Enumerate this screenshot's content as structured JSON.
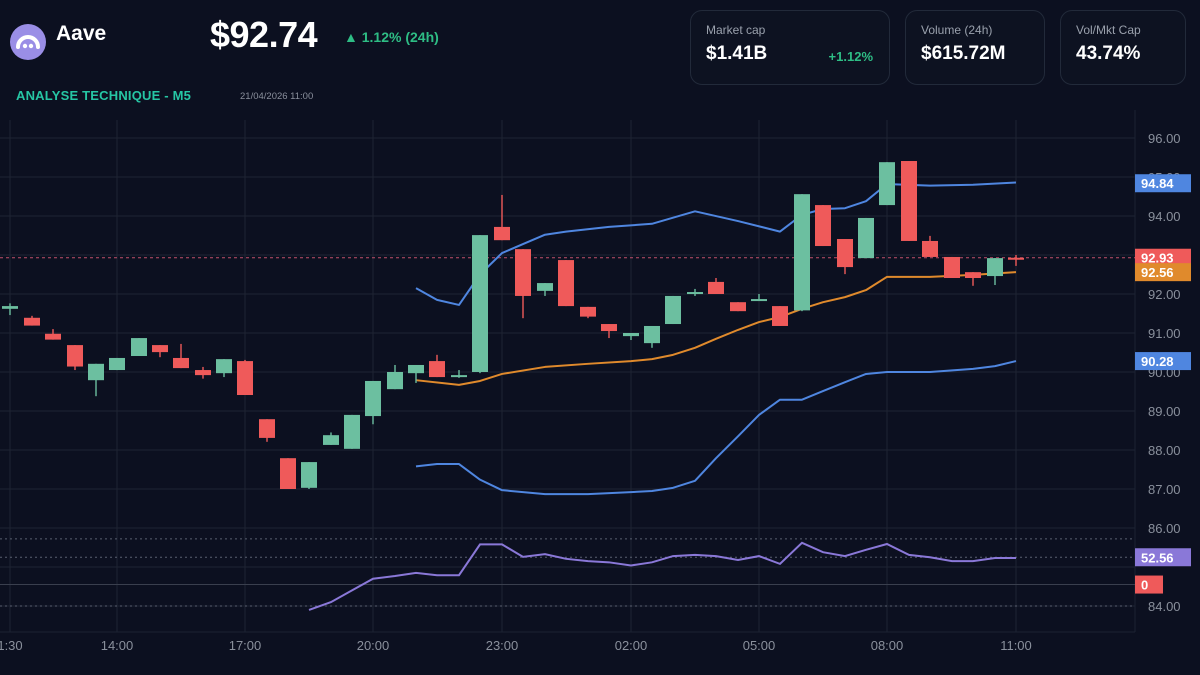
{
  "header": {
    "asset_name": "Aave",
    "price": "$92.74",
    "change": "▲ 1.12% (24h)",
    "section_title": "ANALYSE TECHNIQUE - M5",
    "timestamp": "21/04/2026 11:00"
  },
  "stats": [
    {
      "label": "Market cap",
      "value": "$1.41B",
      "sub": "+1.12%"
    },
    {
      "label": "Volume (24h)",
      "value": "$615.72M",
      "sub": ""
    },
    {
      "label": "Vol/Mkt Cap",
      "value": "43.74%",
      "sub": ""
    }
  ],
  "colors": {
    "up": "#6cbfa0",
    "down": "#ef5a5a",
    "bollinger": "#4f86e0",
    "sma": "#e08a2c",
    "rsi": "#8a78d8",
    "grid": "#1e2433",
    "background": "#0c1020"
  },
  "chart_data": {
    "type": "candlestick",
    "title": "ANALYSE TECHNIQUE - M5",
    "x_tick_labels": [
      "1:30",
      "14:00",
      "17:00",
      "20:00",
      "23:00",
      "02:00",
      "05:00",
      "08:00",
      "11:00"
    ],
    "y_tick_labels": [
      "96.00",
      "95.00",
      "94.00",
      "92.00",
      "91.00",
      "90.00",
      "89.00",
      "88.00",
      "87.00",
      "86.00",
      "84.00"
    ],
    "ylim": [
      83.7,
      96.4
    ],
    "grid": true,
    "price_tags": [
      {
        "label": "94.84",
        "value": 94.84,
        "color": "#4f86e0"
      },
      {
        "label": "92.93",
        "value": 92.93,
        "color": "#ef5a5a"
      },
      {
        "label": "92.56",
        "value": 92.56,
        "color": "#e08a2c"
      },
      {
        "label": "90.28",
        "value": 90.28,
        "color": "#4f86e0"
      },
      {
        "label": "52.56",
        "value": 85.25,
        "color": "#8a78d8"
      },
      {
        "label": "0",
        "value": 84.55,
        "color": "#ef5a5a"
      }
    ],
    "current_price_line": 92.93,
    "candles": [
      {
        "x": 10,
        "o": 91.62,
        "c": 91.69,
        "h": 91.76,
        "l": 91.46
      },
      {
        "x": 32,
        "o": 91.39,
        "c": 91.19,
        "h": 91.44,
        "l": 91.19
      },
      {
        "x": 53,
        "o": 90.98,
        "c": 90.83,
        "h": 91.1,
        "l": 90.83
      },
      {
        "x": 75,
        "o": 90.69,
        "c": 90.14,
        "h": 90.69,
        "l": 90.05
      },
      {
        "x": 96,
        "o": 89.79,
        "c": 90.21,
        "h": 90.21,
        "l": 89.38
      },
      {
        "x": 117,
        "o": 90.05,
        "c": 90.36,
        "h": 90.36,
        "l": 90.05
      },
      {
        "x": 139,
        "o": 90.41,
        "c": 90.87,
        "h": 90.87,
        "l": 90.41
      },
      {
        "x": 160,
        "o": 90.69,
        "c": 90.51,
        "h": 90.69,
        "l": 90.38
      },
      {
        "x": 181,
        "o": 90.36,
        "c": 90.1,
        "h": 90.72,
        "l": 90.1
      },
      {
        "x": 203,
        "o": 90.05,
        "c": 89.92,
        "h": 90.13,
        "l": 89.83
      },
      {
        "x": 224,
        "o": 89.97,
        "c": 90.33,
        "h": 90.33,
        "l": 89.87
      },
      {
        "x": 245,
        "o": 90.28,
        "c": 89.41,
        "h": 90.31,
        "l": 89.41
      },
      {
        "x": 267,
        "o": 88.79,
        "c": 88.31,
        "h": 88.79,
        "l": 88.21
      },
      {
        "x": 288,
        "o": 87.79,
        "c": 87.0,
        "h": 87.79,
        "l": 87.0
      },
      {
        "x": 309,
        "o": 87.03,
        "c": 87.69,
        "h": 87.69,
        "l": 87.0
      },
      {
        "x": 331,
        "o": 88.13,
        "c": 88.38,
        "h": 88.45,
        "l": 88.13
      },
      {
        "x": 352,
        "o": 88.03,
        "c": 88.9,
        "h": 88.9,
        "l": 88.03
      },
      {
        "x": 373,
        "o": 88.87,
        "c": 89.77,
        "h": 89.77,
        "l": 88.66
      },
      {
        "x": 395,
        "o": 89.56,
        "c": 90.0,
        "h": 90.18,
        "l": 89.56
      },
      {
        "x": 416,
        "o": 89.97,
        "c": 90.18,
        "h": 90.18,
        "l": 89.72
      },
      {
        "x": 437,
        "o": 90.28,
        "c": 89.87,
        "h": 90.44,
        "l": 89.87
      },
      {
        "x": 459,
        "o": 89.87,
        "c": 89.92,
        "h": 90.05,
        "l": 89.85
      },
      {
        "x": 480,
        "o": 90.0,
        "c": 93.51,
        "h": 93.51,
        "l": 89.97
      },
      {
        "x": 502,
        "o": 93.72,
        "c": 93.38,
        "h": 94.54,
        "l": 93.38
      },
      {
        "x": 523,
        "o": 93.15,
        "c": 91.95,
        "h": 93.15,
        "l": 91.38
      },
      {
        "x": 545,
        "o": 92.08,
        "c": 92.28,
        "h": 92.28,
        "l": 91.95
      },
      {
        "x": 566,
        "o": 92.87,
        "c": 91.69,
        "h": 92.87,
        "l": 91.69
      },
      {
        "x": 588,
        "o": 91.67,
        "c": 91.42,
        "h": 91.67,
        "l": 91.38
      },
      {
        "x": 609,
        "o": 91.23,
        "c": 91.05,
        "h": 91.23,
        "l": 90.87
      },
      {
        "x": 631,
        "o": 90.92,
        "c": 91.0,
        "h": 91.0,
        "l": 90.82
      },
      {
        "x": 652,
        "o": 90.74,
        "c": 91.18,
        "h": 91.18,
        "l": 90.62
      },
      {
        "x": 673,
        "o": 91.23,
        "c": 91.95,
        "h": 91.95,
        "l": 91.23
      },
      {
        "x": 695,
        "o": 92.0,
        "c": 92.05,
        "h": 92.13,
        "l": 91.95
      },
      {
        "x": 716,
        "o": 92.31,
        "c": 92.0,
        "h": 92.41,
        "l": 92.0
      },
      {
        "x": 738,
        "o": 91.79,
        "c": 91.56,
        "h": 91.79,
        "l": 91.56
      },
      {
        "x": 759,
        "o": 91.85,
        "c": 91.87,
        "h": 92.0,
        "l": 91.82
      },
      {
        "x": 780,
        "o": 91.69,
        "c": 91.18,
        "h": 91.69,
        "l": 91.18
      },
      {
        "x": 802,
        "o": 91.58,
        "c": 94.56,
        "h": 94.56,
        "l": 91.56
      },
      {
        "x": 823,
        "o": 94.28,
        "c": 93.23,
        "h": 94.28,
        "l": 93.23
      },
      {
        "x": 845,
        "o": 93.41,
        "c": 92.69,
        "h": 93.41,
        "l": 92.51
      },
      {
        "x": 866,
        "o": 92.92,
        "c": 93.95,
        "h": 93.95,
        "l": 92.92
      },
      {
        "x": 887,
        "o": 94.28,
        "c": 95.38,
        "h": 95.38,
        "l": 94.28
      },
      {
        "x": 909,
        "o": 95.41,
        "c": 93.36,
        "h": 95.41,
        "l": 93.36
      },
      {
        "x": 930,
        "o": 93.36,
        "c": 92.95,
        "h": 93.49,
        "l": 92.95
      },
      {
        "x": 952,
        "o": 92.95,
        "c": 92.41,
        "h": 92.95,
        "l": 92.41
      },
      {
        "x": 973,
        "o": 92.56,
        "c": 92.41,
        "h": 92.56,
        "l": 92.21
      },
      {
        "x": 995,
        "o": 92.46,
        "c": 92.92,
        "h": 92.92,
        "l": 92.23
      },
      {
        "x": 1016,
        "o": 92.93,
        "c": 92.9,
        "h": 93.0,
        "l": 92.72
      }
    ],
    "bollinger_upper": [
      [
        416,
        92.15
      ],
      [
        437,
        91.85
      ],
      [
        459,
        91.72
      ],
      [
        480,
        92.5
      ],
      [
        502,
        93.05
      ],
      [
        523,
        93.28
      ],
      [
        545,
        93.52
      ],
      [
        566,
        93.6
      ],
      [
        609,
        93.72
      ],
      [
        652,
        93.8
      ],
      [
        695,
        94.12
      ],
      [
        738,
        93.87
      ],
      [
        780,
        93.6
      ],
      [
        802,
        94.03
      ],
      [
        823,
        94.18
      ],
      [
        845,
        94.2
      ],
      [
        866,
        94.38
      ],
      [
        887,
        94.82
      ],
      [
        930,
        94.78
      ],
      [
        973,
        94.8
      ],
      [
        1016,
        94.86
      ]
    ],
    "bollinger_lower": [
      [
        416,
        87.58
      ],
      [
        437,
        87.64
      ],
      [
        459,
        87.64
      ],
      [
        480,
        87.24
      ],
      [
        502,
        86.97
      ],
      [
        545,
        86.87
      ],
      [
        588,
        86.87
      ],
      [
        631,
        86.92
      ],
      [
        652,
        86.95
      ],
      [
        673,
        87.03
      ],
      [
        695,
        87.21
      ],
      [
        716,
        87.79
      ],
      [
        738,
        88.35
      ],
      [
        759,
        88.9
      ],
      [
        780,
        89.29
      ],
      [
        802,
        89.29
      ],
      [
        823,
        89.51
      ],
      [
        845,
        89.74
      ],
      [
        866,
        89.95
      ],
      [
        887,
        90.0
      ],
      [
        930,
        90.0
      ],
      [
        973,
        90.08
      ],
      [
        995,
        90.15
      ],
      [
        1016,
        90.28
      ]
    ],
    "sma": [
      [
        416,
        89.79
      ],
      [
        459,
        89.67
      ],
      [
        480,
        89.77
      ],
      [
        502,
        89.95
      ],
      [
        545,
        90.13
      ],
      [
        588,
        90.21
      ],
      [
        631,
        90.28
      ],
      [
        652,
        90.33
      ],
      [
        673,
        90.44
      ],
      [
        695,
        90.62
      ],
      [
        716,
        90.85
      ],
      [
        738,
        91.08
      ],
      [
        759,
        91.28
      ],
      [
        780,
        91.41
      ],
      [
        802,
        91.62
      ],
      [
        823,
        91.79
      ],
      [
        845,
        91.92
      ],
      [
        866,
        92.1
      ],
      [
        887,
        92.44
      ],
      [
        930,
        92.44
      ],
      [
        973,
        92.49
      ],
      [
        1016,
        92.56
      ]
    ],
    "rsi": {
      "label": "52.56",
      "points": [
        [
          309,
          83.9
        ],
        [
          331,
          84.1
        ],
        [
          352,
          84.4
        ],
        [
          373,
          84.7
        ],
        [
          395,
          84.77
        ],
        [
          416,
          84.85
        ],
        [
          437,
          84.79
        ],
        [
          459,
          84.79
        ],
        [
          480,
          85.58
        ],
        [
          502,
          85.58
        ],
        [
          523,
          85.26
        ],
        [
          545,
          85.33
        ],
        [
          566,
          85.21
        ],
        [
          588,
          85.15
        ],
        [
          609,
          85.12
        ],
        [
          631,
          85.04
        ],
        [
          652,
          85.12
        ],
        [
          673,
          85.28
        ],
        [
          695,
          85.31
        ],
        [
          716,
          85.28
        ],
        [
          738,
          85.18
        ],
        [
          759,
          85.28
        ],
        [
          780,
          85.08
        ],
        [
          802,
          85.62
        ],
        [
          823,
          85.38
        ],
        [
          845,
          85.28
        ],
        [
          866,
          85.44
        ],
        [
          887,
          85.59
        ],
        [
          909,
          85.31
        ],
        [
          930,
          85.25
        ],
        [
          952,
          85.15
        ],
        [
          973,
          85.15
        ],
        [
          995,
          85.23
        ],
        [
          1016,
          85.23
        ]
      ]
    }
  }
}
